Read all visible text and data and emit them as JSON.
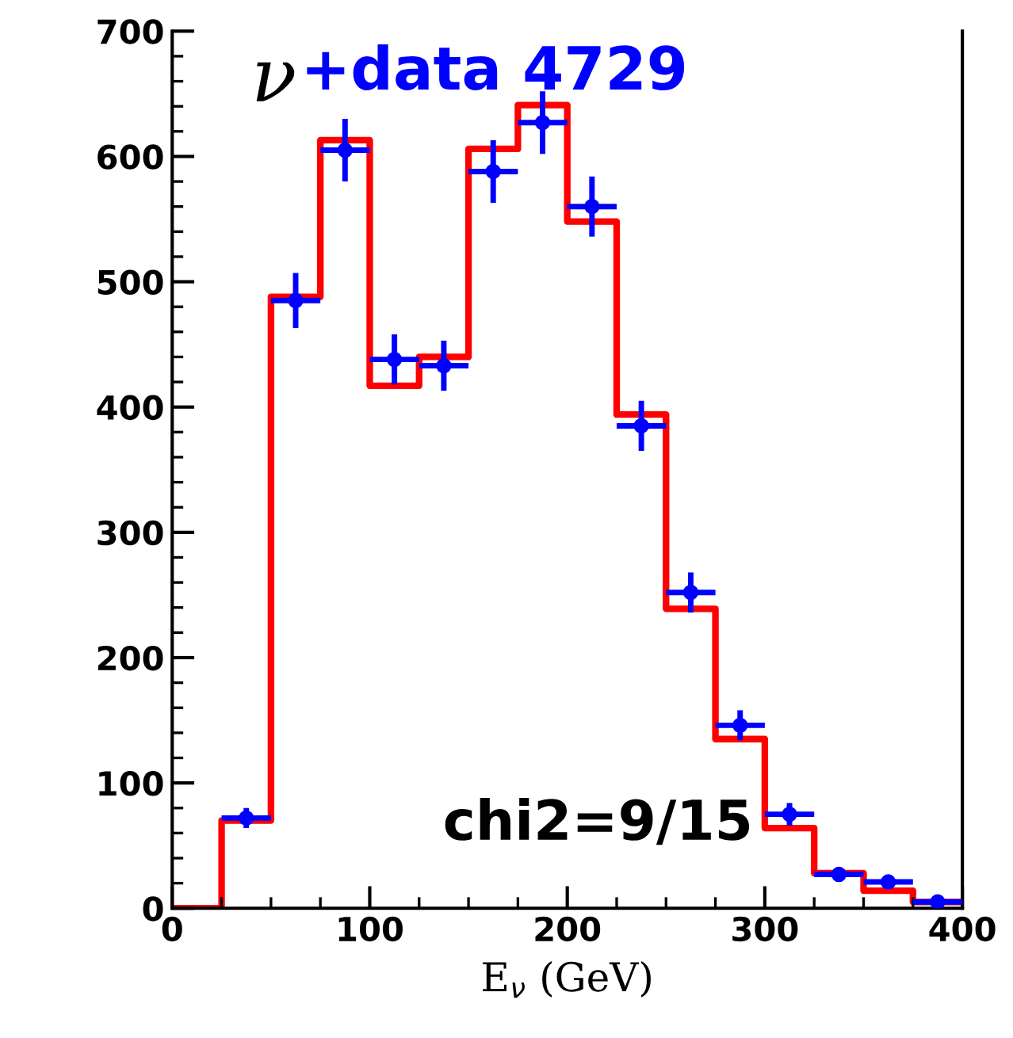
{
  "chart_data": {
    "type": "histogram",
    "title": "ν+data 4729",
    "xlabel": "E$_{ν}$ (GeV)",
    "annotations": [
      "chi2=9/15"
    ],
    "xlim": [
      0,
      400
    ],
    "xticks": [
      0,
      100,
      200,
      300,
      400
    ],
    "ylim": [
      0,
      700
    ],
    "yticks": [
      0,
      100,
      200,
      300,
      400,
      500,
      600,
      700
    ],
    "grid": false,
    "legend": false,
    "series": [
      {
        "color": "#ff0000",
        "bins": [
          0,
          25,
          50,
          75,
          100,
          125,
          150,
          175,
          200,
          225,
          250,
          275,
          300,
          325,
          350,
          375,
          400
        ],
        "values": [
          0,
          70,
          488,
          613,
          417,
          440,
          606,
          641,
          548,
          394,
          239,
          135,
          64,
          28,
          14,
          5
        ]
      },
      {
        "type": "scatter",
        "color": "#0000ff",
        "marker": "circle",
        "x": [
          37.5,
          62.5,
          87.5,
          112.5,
          137.5,
          162.5,
          187.5,
          212.5,
          237.5,
          262.5,
          287.5,
          312.5,
          337.5,
          362.5,
          387.5
        ],
        "values": [
          72,
          485,
          605,
          438,
          433,
          588,
          627,
          560,
          385,
          252,
          146,
          75,
          27,
          21,
          5
        ],
        "errors": [
          8,
          22,
          25,
          20,
          20,
          25,
          25,
          24,
          20,
          16,
          12,
          9,
          5,
          5,
          2
        ],
        "xerrors": [
          12.5,
          12.5,
          12.5,
          12.5,
          12.5,
          12.5,
          12.5,
          12.5,
          12.5,
          12.5,
          12.5,
          12.5,
          12.5,
          12.5,
          12.5
        ]
      }
    ]
  }
}
